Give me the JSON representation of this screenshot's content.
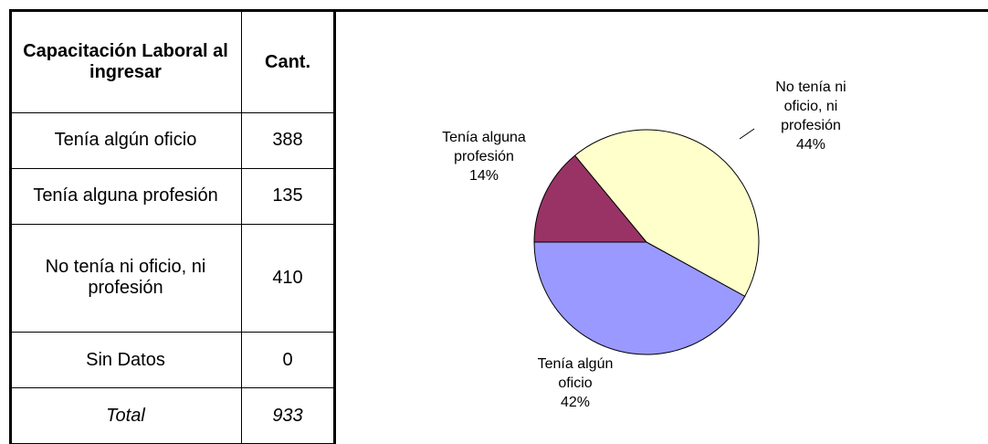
{
  "table": {
    "header": [
      "Capacitación Laboral al ingresar",
      "Cant."
    ],
    "rows": [
      [
        "Tenía algún oficio",
        388
      ],
      [
        "Tenía alguna profesión",
        135
      ],
      [
        "No tenía ni oficio, ni profesión",
        410
      ],
      [
        "Sin Datos",
        0
      ]
    ],
    "total": [
      "Total",
      933
    ]
  },
  "chart_data": {
    "type": "pie",
    "categories": [
      "Tenía algún oficio",
      "Tenía alguna profesión",
      "No tenía ni oficio, ni profesión"
    ],
    "values": [
      42,
      14,
      44
    ],
    "value_labels": [
      "42%",
      "14%",
      "44%"
    ],
    "colors": [
      "#9999ff",
      "#993366",
      "#ffffcc"
    ]
  }
}
